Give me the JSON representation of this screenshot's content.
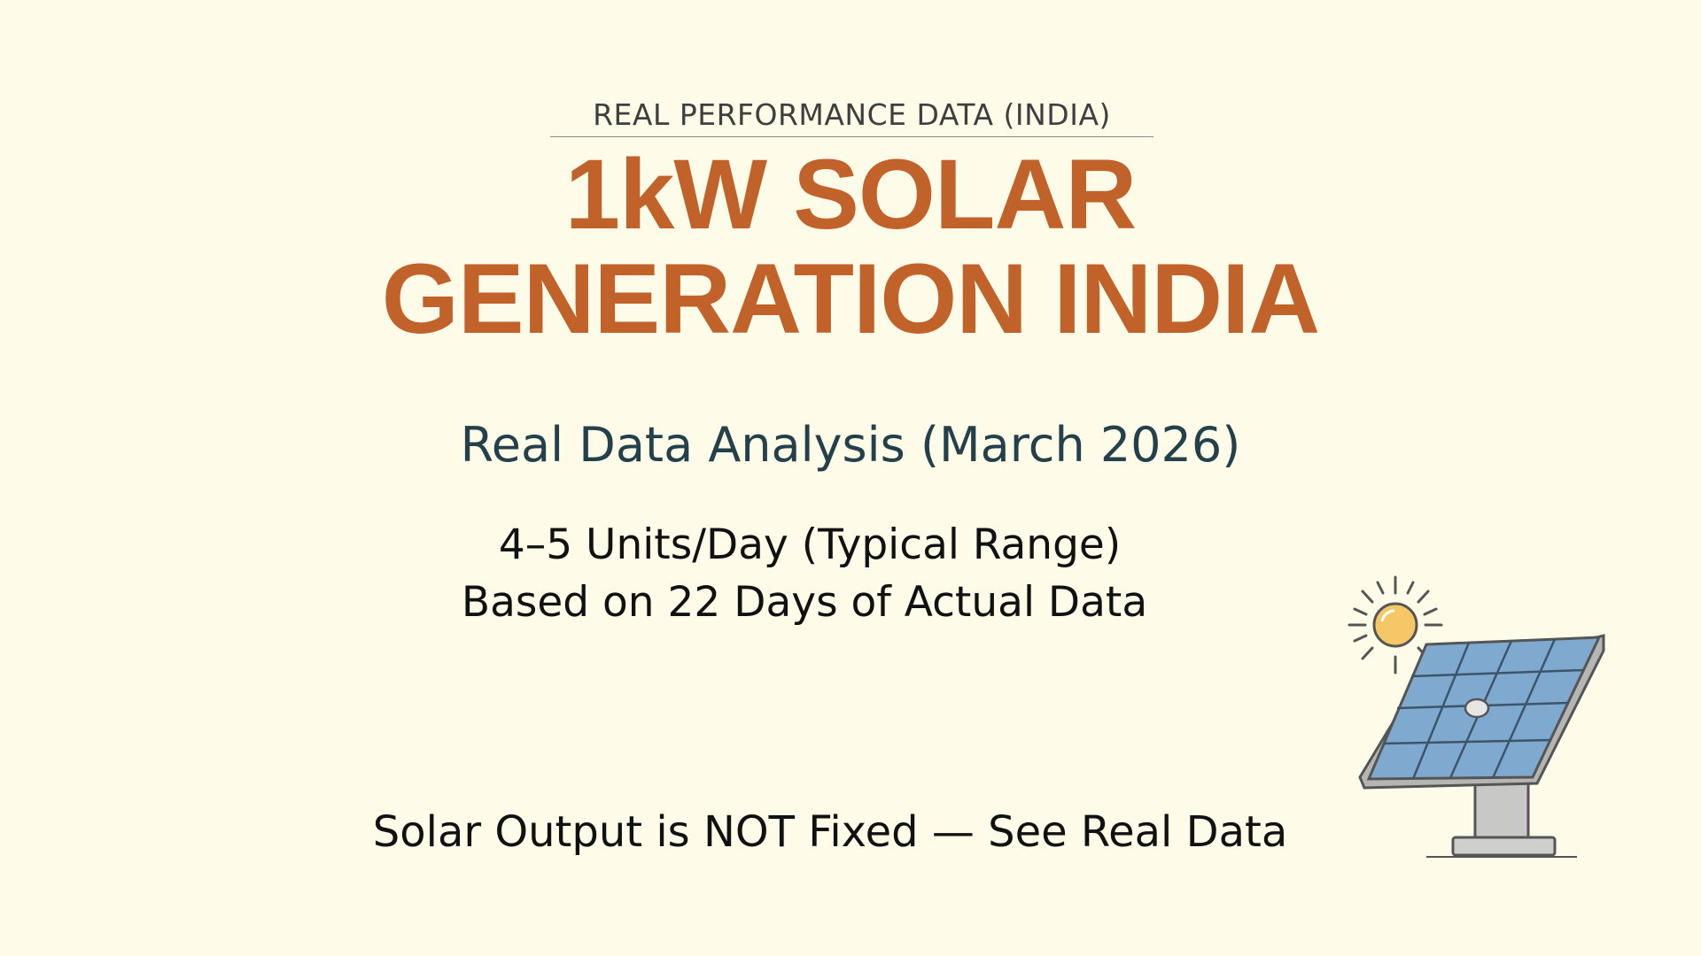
{
  "header": {
    "eyebrow": "REAL PERFORMANCE DATA (INDIA)",
    "title_lines": [
      "1kW SOLAR",
      "GENERATION INDIA"
    ]
  },
  "subtitle": "Real Data Analysis (March 2026)",
  "highlights": [
    "4–5 Units/Day (Typical Range)",
    "Based on 22 Days of Actual Data"
  ],
  "tagline": "Solar Output is NOT Fixed — See Real Data"
}
